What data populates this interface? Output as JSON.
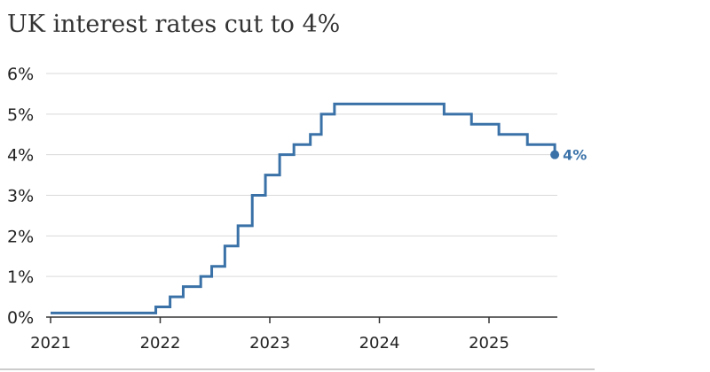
{
  "chart_data": {
    "type": "line",
    "title": "UK interest rates cut to 4%",
    "xlabel": "",
    "ylabel": "",
    "y_ticks": [
      "0%",
      "1%",
      "2%",
      "3%",
      "4%",
      "5%",
      "6%"
    ],
    "x_ticks": [
      "2021",
      "2022",
      "2023",
      "2024",
      "2025"
    ],
    "ylim": [
      0,
      6
    ],
    "xlim": [
      2021.0,
      2025.7
    ],
    "grid": true,
    "line_style": "step",
    "series": [
      {
        "color": "#3a72a8",
        "x": [
          2021.0,
          2021.96,
          2022.09,
          2022.21,
          2022.37,
          2022.47,
          2022.59,
          2022.71,
          2022.84,
          2022.96,
          2023.09,
          2023.22,
          2023.37,
          2023.47,
          2023.59,
          2024.59,
          2024.84,
          2025.09,
          2025.35,
          2025.6
        ],
        "y": [
          0.1,
          0.25,
          0.5,
          0.75,
          1.0,
          1.25,
          1.75,
          2.25,
          3.0,
          3.5,
          4.0,
          4.25,
          4.5,
          5.0,
          5.25,
          5.0,
          4.75,
          4.5,
          4.25,
          4.0
        ]
      }
    ],
    "end_label": "4%"
  }
}
